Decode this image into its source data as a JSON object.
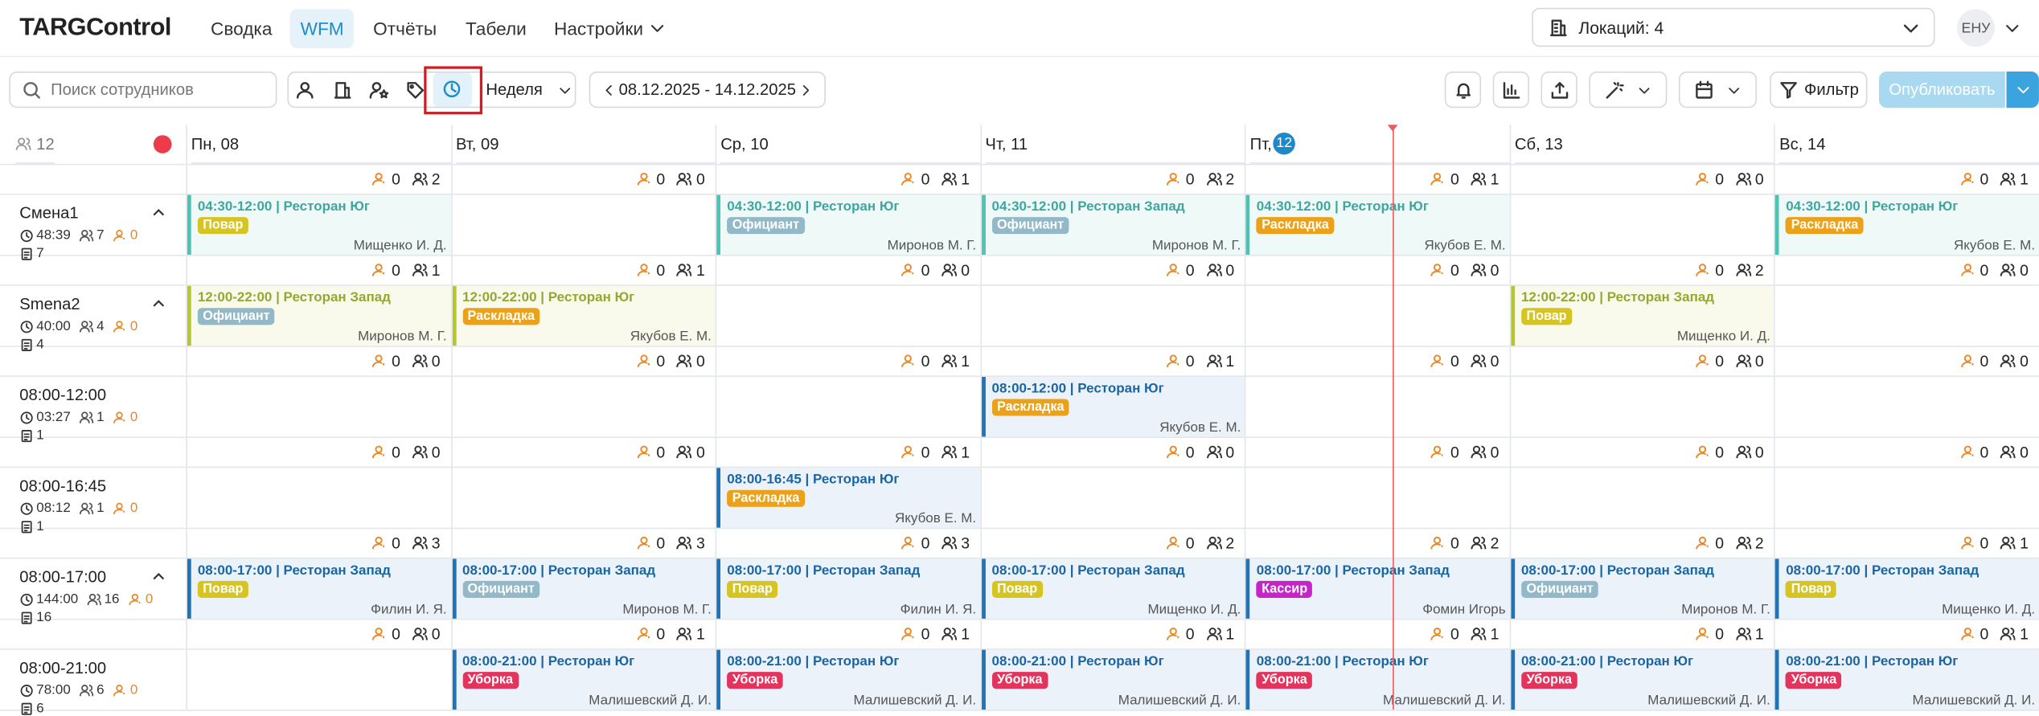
{
  "header": {
    "logo": "TARGControl",
    "nav": [
      "Сводка",
      "WFM",
      "Отчёты",
      "Табели",
      "Настройки"
    ],
    "locations": "Локаций: 4",
    "user": "ЕНУ"
  },
  "toolbar": {
    "search_placeholder": "Поиск сотрудников",
    "period": "Неделя",
    "date_range": "08.12.2025 - 14.12.2025",
    "filter": "Фильтр",
    "publish": "Опубликовать"
  },
  "schedule": {
    "employee_count": 12,
    "days": [
      {
        "name": "Пн, 08"
      },
      {
        "name": "Вт, 09"
      },
      {
        "name": "Ср, 10"
      },
      {
        "name": "Чт, 11"
      },
      {
        "name": "Пт,",
        "badge": "12"
      },
      {
        "name": "Сб, 13"
      },
      {
        "name": "Вс, 14"
      }
    ],
    "shifts": [
      {
        "name": "Смена1",
        "chevron": true,
        "color": "#4cc4b3",
        "hours": "48:39",
        "people": 7,
        "warn": 0,
        "docs": 7,
        "counts": [
          {
            "warn": 0,
            "people": 2
          },
          {
            "warn": 0,
            "people": 0
          },
          {
            "warn": 0,
            "people": 1
          },
          {
            "warn": 0,
            "people": 2
          },
          {
            "warn": 0,
            "people": 1
          },
          {
            "warn": 0,
            "people": 0
          },
          {
            "warn": 0,
            "people": 1
          }
        ],
        "cells": [
          {
            "title": "04:30-12:00 | Ресторан Юг",
            "role": "Повар",
            "role_color": "#d6c423",
            "employee": "Мищенко И. Д."
          },
          null,
          {
            "title": "04:30-12:00 | Ресторан Юг",
            "role": "Официант",
            "role_color": "#93b9c9",
            "employee": "Миронов М. Г."
          },
          {
            "title": "04:30-12:00 | Ресторан Запад",
            "role": "Официант",
            "role_color": "#93b9c9",
            "employee": "Миронов М. Г."
          },
          {
            "title": "04:30-12:00 | Ресторан Юг",
            "role": "Раскладка",
            "role_color": "#eba21a",
            "employee": "Якубов Е. М."
          },
          null,
          {
            "title": "04:30-12:00 | Ресторан Юг",
            "role": "Раскладка",
            "role_color": "#eba21a",
            "employee": "Якубов Е. М."
          }
        ]
      },
      {
        "name": "Smena2",
        "chevron": true,
        "color": "#b7c62c",
        "hours": "40:00",
        "people": 4,
        "warn": 0,
        "docs": 4,
        "counts": [
          {
            "warn": 0,
            "people": 1
          },
          {
            "warn": 0,
            "people": 1
          },
          {
            "warn": 0,
            "people": 0
          },
          {
            "warn": 0,
            "people": 0
          },
          {
            "warn": 0,
            "people": 0
          },
          {
            "warn": 0,
            "people": 2
          },
          {
            "warn": 0,
            "people": 0
          }
        ],
        "cells": [
          {
            "title": "12:00-22:00 | Ресторан Запад",
            "role": "Официант",
            "role_color": "#93b9c9",
            "employee": "Миронов М. Г."
          },
          {
            "title": "12:00-22:00 | Ресторан Юг",
            "role": "Раскладка",
            "role_color": "#eba21a",
            "employee": "Якубов Е. М."
          },
          null,
          null,
          null,
          {
            "title": "12:00-22:00 | Ресторан Запад",
            "role": "Повар",
            "role_color": "#d6c423",
            "employee": "Мищенко И. Д."
          },
          null
        ]
      },
      {
        "name": "08:00-12:00",
        "chevron": false,
        "color": "#1f73b7",
        "hours": "03:27",
        "people": 1,
        "warn": 0,
        "docs": 1,
        "counts": [
          {
            "warn": 0,
            "people": 0
          },
          {
            "warn": 0,
            "people": 0
          },
          {
            "warn": 0,
            "people": 1
          },
          {
            "warn": 0,
            "people": 1
          },
          {
            "warn": 0,
            "people": 0
          },
          {
            "warn": 0,
            "people": 0
          },
          {
            "warn": 0,
            "people": 0
          }
        ],
        "cells": [
          null,
          null,
          null,
          {
            "title": "08:00-12:00 | Ресторан Юг",
            "role": "Раскладка",
            "role_color": "#eba21a",
            "employee": "Якубов Е. М."
          },
          null,
          null,
          null
        ]
      },
      {
        "name": "08:00-16:45",
        "chevron": false,
        "color": "#1f73b7",
        "hours": "08:12",
        "people": 1,
        "warn": 0,
        "docs": 1,
        "counts": [
          {
            "warn": 0,
            "people": 0
          },
          {
            "warn": 0,
            "people": 0
          },
          {
            "warn": 0,
            "people": 1
          },
          {
            "warn": 0,
            "people": 0
          },
          {
            "warn": 0,
            "people": 0
          },
          {
            "warn": 0,
            "people": 0
          },
          {
            "warn": 0,
            "people": 0
          }
        ],
        "cells": [
          null,
          null,
          {
            "title": "08:00-16:45 | Ресторан Юг",
            "role": "Раскладка",
            "role_color": "#eba21a",
            "employee": "Якубов Е. М."
          },
          null,
          null,
          null,
          null
        ]
      },
      {
        "name": "08:00-17:00",
        "chevron": true,
        "color": "#1f73b7",
        "hours": "144:00",
        "people": 16,
        "warn": 0,
        "docs": 16,
        "counts": [
          {
            "warn": 0,
            "people": 3
          },
          {
            "warn": 0,
            "people": 3
          },
          {
            "warn": 0,
            "people": 3
          },
          {
            "warn": 0,
            "people": 2
          },
          {
            "warn": 0,
            "people": 2
          },
          {
            "warn": 0,
            "people": 2
          },
          {
            "warn": 0,
            "people": 1
          }
        ],
        "cells": [
          {
            "title": "08:00-17:00 | Ресторан Запад",
            "role": "Повар",
            "role_color": "#d6c423",
            "employee": "Филин И. Я."
          },
          {
            "title": "08:00-17:00 | Ресторан Запад",
            "role": "Официант",
            "role_color": "#93b9c9",
            "employee": "Миронов М. Г."
          },
          {
            "title": "08:00-17:00 | Ресторан Запад",
            "role": "Повар",
            "role_color": "#d6c423",
            "employee": "Филин И. Я."
          },
          {
            "title": "08:00-17:00 | Ресторан Запад",
            "role": "Повар",
            "role_color": "#d6c423",
            "employee": "Мищенко И. Д."
          },
          {
            "title": "08:00-17:00 | Ресторан Запад",
            "role": "Кассир",
            "role_color": "#c623c9",
            "employee": "Фомин Игорь"
          },
          {
            "title": "08:00-17:00 | Ресторан Запад",
            "role": "Официант",
            "role_color": "#93b9c9",
            "employee": "Миронов М. Г."
          },
          {
            "title": "08:00-17:00 | Ресторан Запад",
            "role": "Повар",
            "role_color": "#d6c423",
            "employee": "Мищенко И. Д."
          }
        ]
      },
      {
        "name": "08:00-21:00",
        "chevron": false,
        "color": "#1f73b7",
        "hours": "78:00",
        "people": 6,
        "warn": 0,
        "docs": 6,
        "counts": [
          {
            "warn": 0,
            "people": 0
          },
          {
            "warn": 0,
            "people": 1
          },
          {
            "warn": 0,
            "people": 1
          },
          {
            "warn": 0,
            "people": 1
          },
          {
            "warn": 0,
            "people": 1
          },
          {
            "warn": 0,
            "people": 1
          },
          {
            "warn": 0,
            "people": 1
          }
        ],
        "cells": [
          null,
          {
            "title": "08:00-21:00 | Ресторан Юг",
            "role": "Уборка",
            "role_color": "#e2345c",
            "employee": "Малишевский Д. И."
          },
          {
            "title": "08:00-21:00 | Ресторан Юг",
            "role": "Уборка",
            "role_color": "#e2345c",
            "employee": "Малишевский Д. И."
          },
          {
            "title": "08:00-21:00 | Ресторан Юг",
            "role": "Уборка",
            "role_color": "#e2345c",
            "employee": "Малишевский Д. И."
          },
          {
            "title": "08:00-21:00 | Ресторан Юг",
            "role": "Уборка",
            "role_color": "#e2345c",
            "employee": "Малишевский Д. И."
          },
          {
            "title": "08:00-21:00 | Ресторан Юг",
            "role": "Уборка",
            "role_color": "#e2345c",
            "employee": "Малишевский Д. И."
          },
          {
            "title": "08:00-21:00 | Ресторан Юг",
            "role": "Уборка",
            "role_color": "#e2345c",
            "employee": "Малишевский Д. И."
          }
        ]
      }
    ]
  }
}
